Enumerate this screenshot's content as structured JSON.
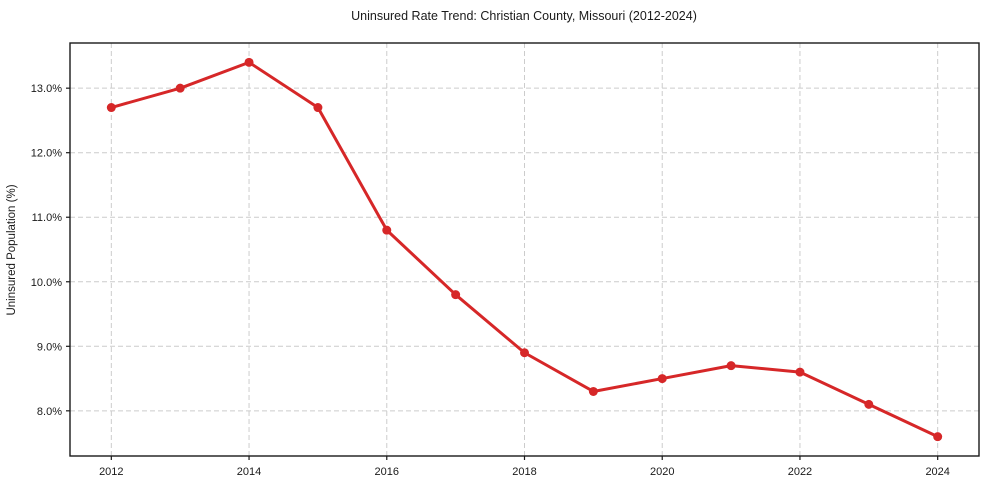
{
  "chart_data": {
    "type": "line",
    "title": "Uninsured Rate Trend: Christian County, Missouri (2012-2024)",
    "xlabel": "",
    "ylabel": "Uninsured Population (%)",
    "x": [
      2012,
      2013,
      2014,
      2015,
      2016,
      2017,
      2018,
      2019,
      2020,
      2021,
      2022,
      2023,
      2024
    ],
    "values": [
      12.7,
      13.0,
      13.4,
      12.7,
      10.8,
      9.8,
      8.9,
      8.3,
      8.5,
      8.7,
      8.6,
      8.1,
      7.6
    ],
    "xlim": [
      2011.4,
      2024.6
    ],
    "ylim": [
      7.3,
      13.7
    ],
    "x_ticks": {
      "values": [
        2012,
        2014,
        2016,
        2018,
        2020,
        2022,
        2024
      ],
      "labels": [
        "2012",
        "2014",
        "2016",
        "2018",
        "2020",
        "2022",
        "2024"
      ]
    },
    "y_ticks": {
      "values": [
        8,
        9,
        10,
        11,
        12,
        13
      ],
      "labels": [
        "8.0%",
        "9.0%",
        "10.0%",
        "11.0%",
        "12.0%",
        "13.0%"
      ]
    },
    "grid": true,
    "grid_style": "dashed",
    "legend_position": "none",
    "colors": {
      "line": "#d62728",
      "marker": "#d62728",
      "grid": "#cccccc",
      "spine": "#1a1a1a",
      "text": "#1a1a1a",
      "background": "#ffffff"
    },
    "marker": "circle",
    "marker_radius": 4.5,
    "line_width": 3
  }
}
